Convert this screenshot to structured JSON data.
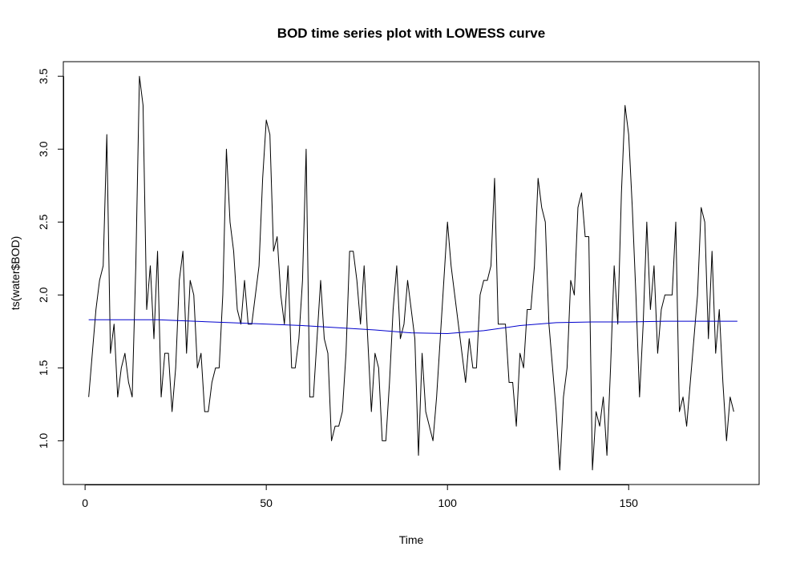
{
  "chart_data": {
    "type": "line",
    "title": "BOD time series plot with LOWESS curve",
    "xlabel": "Time",
    "ylabel": "ts(water$BOD)",
    "xlim": [
      -6,
      186
    ],
    "ylim": [
      0.7,
      3.6
    ],
    "x_ticks": [
      0,
      50,
      100,
      150
    ],
    "y_ticks": [
      1.0,
      1.5,
      2.0,
      2.5,
      3.0,
      3.5
    ],
    "x_tick_labels": [
      "0",
      "50",
      "100",
      "150"
    ],
    "y_tick_labels": [
      "1.0",
      "1.5",
      "2.0",
      "2.5",
      "3.0",
      "3.5"
    ],
    "grid": false,
    "legend": "none",
    "series": [
      {
        "color": "#000000",
        "x_start": 1,
        "values": [
          1.3,
          1.6,
          1.9,
          2.1,
          2.2,
          3.1,
          1.6,
          1.8,
          1.3,
          1.5,
          1.6,
          1.4,
          1.3,
          2.2,
          3.5,
          3.3,
          1.9,
          2.2,
          1.7,
          2.3,
          1.3,
          1.6,
          1.6,
          1.2,
          1.5,
          2.1,
          2.3,
          1.6,
          2.1,
          2.0,
          1.5,
          1.6,
          1.2,
          1.2,
          1.4,
          1.5,
          1.5,
          2.0,
          3.0,
          2.5,
          2.3,
          1.9,
          1.8,
          2.1,
          1.8,
          1.8,
          2.0,
          2.2,
          2.8,
          3.2,
          3.1,
          2.3,
          2.4,
          2.0,
          1.8,
          2.2,
          1.5,
          1.5,
          1.7,
          2.1,
          3.0,
          1.3,
          1.3,
          1.7,
          2.1,
          1.7,
          1.6,
          1.0,
          1.1,
          1.1,
          1.2,
          1.6,
          2.3,
          2.3,
          2.1,
          1.8,
          2.2,
          1.7,
          1.2,
          1.6,
          1.5,
          1.0,
          1.0,
          1.4,
          1.9,
          2.2,
          1.7,
          1.8,
          2.1,
          1.9,
          1.7,
          0.9,
          1.6,
          1.2,
          1.1,
          1.0,
          1.3,
          1.7,
          2.1,
          2.5,
          2.2,
          2.0,
          1.8,
          1.6,
          1.4,
          1.7,
          1.5,
          1.5,
          2.0,
          2.1,
          2.1,
          2.2,
          2.8,
          1.8,
          1.8,
          1.8,
          1.4,
          1.4,
          1.1,
          1.6,
          1.5,
          1.9,
          1.9,
          2.2,
          2.8,
          2.6,
          2.5,
          1.8,
          1.5,
          1.2,
          0.8,
          1.3,
          1.5,
          2.1,
          2.0,
          2.6,
          2.7,
          2.4,
          2.4,
          0.8,
          1.2,
          1.1,
          1.3,
          0.9,
          1.5,
          2.2,
          1.8,
          2.7,
          3.3,
          3.1,
          2.6,
          2.0,
          1.3,
          1.8,
          2.5,
          1.9,
          2.2,
          1.6,
          1.9,
          2.0,
          2.0,
          2.0,
          2.5,
          1.2,
          1.3,
          1.1,
          1.4,
          1.7,
          2.0,
          2.6,
          2.5,
          1.7,
          2.3,
          1.6,
          1.9,
          1.4,
          1.0,
          1.3,
          1.2
        ]
      },
      {
        "color": "#0000CD",
        "x": [
          1,
          20,
          40,
          60,
          80,
          90,
          100,
          110,
          120,
          130,
          140,
          150,
          160,
          170,
          180
        ],
        "values": [
          1.83,
          1.83,
          1.81,
          1.79,
          1.76,
          1.74,
          1.735,
          1.755,
          1.79,
          1.81,
          1.815,
          1.815,
          1.82,
          1.82,
          1.82
        ]
      }
    ]
  }
}
